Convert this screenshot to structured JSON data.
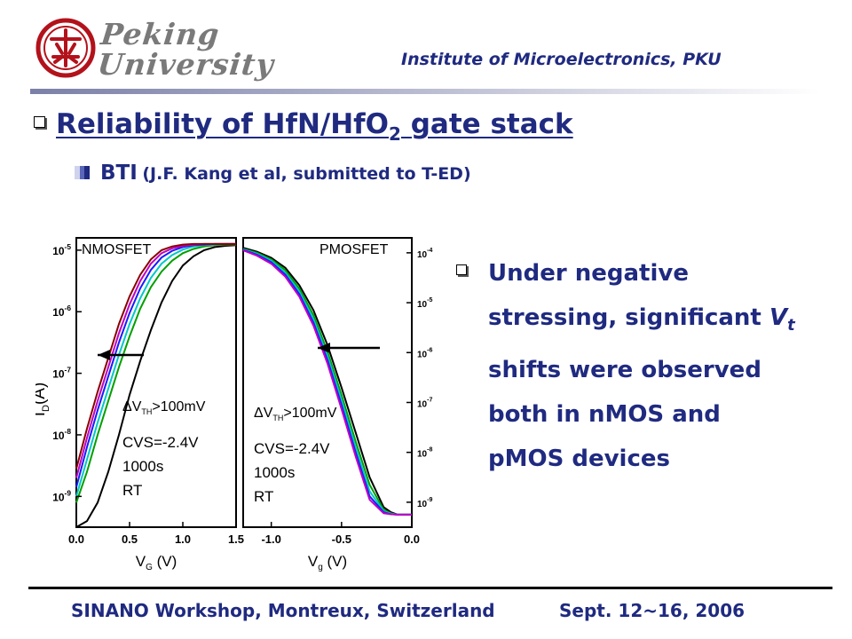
{
  "header": {
    "logo_text_line1": "Peking",
    "logo_text_line2": "University",
    "institute": "Institute of Microelectronics, PKU"
  },
  "title": {
    "main": "Reliability of HfN/HfO",
    "subscript": "2",
    "suffix": " gate stack"
  },
  "subtitle": {
    "label": "BTI",
    "reference": "(J.F. Kang et al, submitted to T-ED)"
  },
  "bullet": {
    "lines": [
      "Under negative",
      "stressing, significant",
      "shifts were observed",
      "both in nMOS and",
      "pMOS devices"
    ],
    "vt_symbol": "V",
    "vt_sub": "t"
  },
  "footer": {
    "left": "SINANO Workshop,  Montreux, Switzerland",
    "right": "Sept. 12~16, 2006"
  },
  "colors": {
    "accent": "#1f2a80",
    "curves": [
      "#000000",
      "#00a000",
      "#00c8c8",
      "#1a1aff",
      "#c000c0",
      "#8b0000",
      "#e0c000",
      "#d01010"
    ]
  },
  "chart_data": [
    {
      "type": "line",
      "panel_label": "NMOSFET",
      "xlabel": "V_G (V)",
      "ylabel": "I_D (A)",
      "xlim": [
        0.0,
        1.5
      ],
      "ylim_log10": [
        -9.5,
        -4.8
      ],
      "y_scale": "log",
      "x_ticks": [
        "0.0",
        "0.5",
        "1.0",
        "1.5"
      ],
      "y_ticks": [
        "10^-9",
        "10^-8",
        "10^-7",
        "10^-6",
        "10^-5"
      ],
      "annotations": [
        ">100mV",
        "CVS=-2.4V",
        "1000s",
        "RT"
      ],
      "vth_shift_symbol": "ΔV",
      "vth_shift_sub": "TH",
      "series": [
        {
          "x": [
            0.0,
            0.1,
            0.2,
            0.3,
            0.4,
            0.5,
            0.6,
            0.7,
            0.8,
            0.9,
            1.0,
            1.1,
            1.2,
            1.3,
            1.4,
            1.5
          ],
          "values": [
            -9.5,
            -9.4,
            -9.1,
            -8.6,
            -8.0,
            -7.35,
            -6.8,
            -6.3,
            -5.85,
            -5.5,
            -5.25,
            -5.1,
            -5.0,
            -4.95,
            -4.93,
            -4.92
          ]
        },
        {
          "x": [
            0.0,
            0.1,
            0.2,
            0.3,
            0.4,
            0.5,
            0.6,
            0.7,
            0.8,
            0.9,
            1.0,
            1.1,
            1.2,
            1.3,
            1.4,
            1.5
          ],
          "values": [
            -9.1,
            -8.6,
            -8.0,
            -7.45,
            -6.9,
            -6.4,
            -5.95,
            -5.6,
            -5.35,
            -5.17,
            -5.05,
            -4.98,
            -4.94,
            -4.92,
            -4.91,
            -4.91
          ]
        },
        {
          "x": [
            0.0,
            0.1,
            0.2,
            0.3,
            0.4,
            0.5,
            0.6,
            0.7,
            0.8,
            0.9,
            1.0,
            1.1,
            1.2,
            1.3,
            1.4,
            1.5
          ],
          "values": [
            -9.0,
            -8.4,
            -7.8,
            -7.25,
            -6.7,
            -6.2,
            -5.78,
            -5.45,
            -5.22,
            -5.08,
            -4.99,
            -4.94,
            -4.92,
            -4.91,
            -4.9,
            -4.9
          ]
        },
        {
          "x": [
            0.0,
            0.1,
            0.2,
            0.3,
            0.4,
            0.5,
            0.6,
            0.7,
            0.8,
            0.9,
            1.0,
            1.1,
            1.2,
            1.3,
            1.4,
            1.5
          ],
          "values": [
            -8.85,
            -8.2,
            -7.6,
            -7.05,
            -6.5,
            -6.02,
            -5.62,
            -5.32,
            -5.12,
            -5.01,
            -4.95,
            -4.92,
            -4.91,
            -4.9,
            -4.9,
            -4.9
          ]
        },
        {
          "x": [
            0.0,
            0.1,
            0.2,
            0.3,
            0.4,
            0.5,
            0.6,
            0.7,
            0.8,
            0.9,
            1.0,
            1.1,
            1.2,
            1.3,
            1.4,
            1.5
          ],
          "values": [
            -8.7,
            -8.05,
            -7.45,
            -6.9,
            -6.35,
            -5.88,
            -5.5,
            -5.22,
            -5.05,
            -4.97,
            -4.93,
            -4.91,
            -4.9,
            -4.9,
            -4.9,
            -4.9
          ]
        },
        {
          "x": [
            0.0,
            0.1,
            0.2,
            0.3,
            0.4,
            0.5,
            0.6,
            0.7,
            0.8,
            0.9,
            1.0,
            1.1,
            1.2,
            1.3,
            1.4,
            1.5
          ],
          "values": [
            -8.55,
            -7.9,
            -7.3,
            -6.75,
            -6.2,
            -5.75,
            -5.4,
            -5.15,
            -5.0,
            -4.94,
            -4.91,
            -4.9,
            -4.9,
            -4.9,
            -4.9,
            -4.9
          ]
        }
      ]
    },
    {
      "type": "line",
      "panel_label": "PMOSFET",
      "xlabel": "V_g (V)",
      "ylabel": "",
      "xlim": [
        -1.2,
        0.0
      ],
      "ylim_log10": [
        -9.5,
        -3.7
      ],
      "y_scale": "log",
      "x_ticks": [
        "-1.0",
        "-0.5",
        "0.0"
      ],
      "y_ticks": [
        "10^-9",
        "10^-8",
        "10^-7",
        "10^-6",
        "10^-5",
        "10^-4"
      ],
      "annotations": [
        ">100mV",
        "CVS=-2.4V",
        "1000s",
        "RT"
      ],
      "vth_shift_symbol": "ΔV",
      "vth_shift_sub": "TH",
      "series": [
        {
          "x": [
            -1.2,
            -1.1,
            -1.0,
            -0.9,
            -0.8,
            -0.7,
            -0.6,
            -0.5,
            -0.4,
            -0.3,
            -0.2,
            -0.15,
            -0.1,
            0.0
          ],
          "values": [
            -3.9,
            -3.98,
            -4.1,
            -4.3,
            -4.65,
            -5.15,
            -5.85,
            -6.7,
            -7.6,
            -8.5,
            -9.1,
            -9.2,
            -9.25,
            -9.25
          ]
        },
        {
          "x": [
            -1.2,
            -1.1,
            -1.0,
            -0.9,
            -0.8,
            -0.7,
            -0.6,
            -0.5,
            -0.4,
            -0.3,
            -0.2,
            -0.15,
            -0.1,
            0.0
          ],
          "values": [
            -3.92,
            -4.0,
            -4.13,
            -4.35,
            -4.72,
            -5.25,
            -5.98,
            -6.85,
            -7.78,
            -8.65,
            -9.15,
            -9.22,
            -9.25,
            -9.25
          ]
        },
        {
          "x": [
            -1.2,
            -1.1,
            -1.0,
            -0.9,
            -0.8,
            -0.7,
            -0.6,
            -0.5,
            -0.4,
            -0.3,
            -0.2,
            -0.15,
            -0.1,
            0.0
          ],
          "values": [
            -3.93,
            -4.02,
            -4.16,
            -4.4,
            -4.78,
            -5.33,
            -6.07,
            -6.95,
            -7.9,
            -8.78,
            -9.18,
            -9.23,
            -9.25,
            -9.25
          ]
        },
        {
          "x": [
            -1.2,
            -1.1,
            -1.0,
            -0.9,
            -0.8,
            -0.7,
            -0.6,
            -0.5,
            -0.4,
            -0.3,
            -0.2,
            -0.15,
            -0.1,
            0.0
          ],
          "values": [
            -3.94,
            -4.04,
            -4.19,
            -4.44,
            -4.83,
            -5.4,
            -6.15,
            -7.05,
            -8.0,
            -8.88,
            -9.2,
            -9.24,
            -9.25,
            -9.25
          ]
        },
        {
          "x": [
            -1.2,
            -1.1,
            -1.0,
            -0.9,
            -0.8,
            -0.7,
            -0.6,
            -0.5,
            -0.4,
            -0.3,
            -0.2,
            -0.15,
            -0.1,
            0.0
          ],
          "values": [
            -3.95,
            -4.06,
            -4.22,
            -4.48,
            -4.88,
            -5.46,
            -6.22,
            -7.13,
            -8.08,
            -8.95,
            -9.22,
            -9.24,
            -9.25,
            -9.25
          ]
        }
      ]
    }
  ]
}
